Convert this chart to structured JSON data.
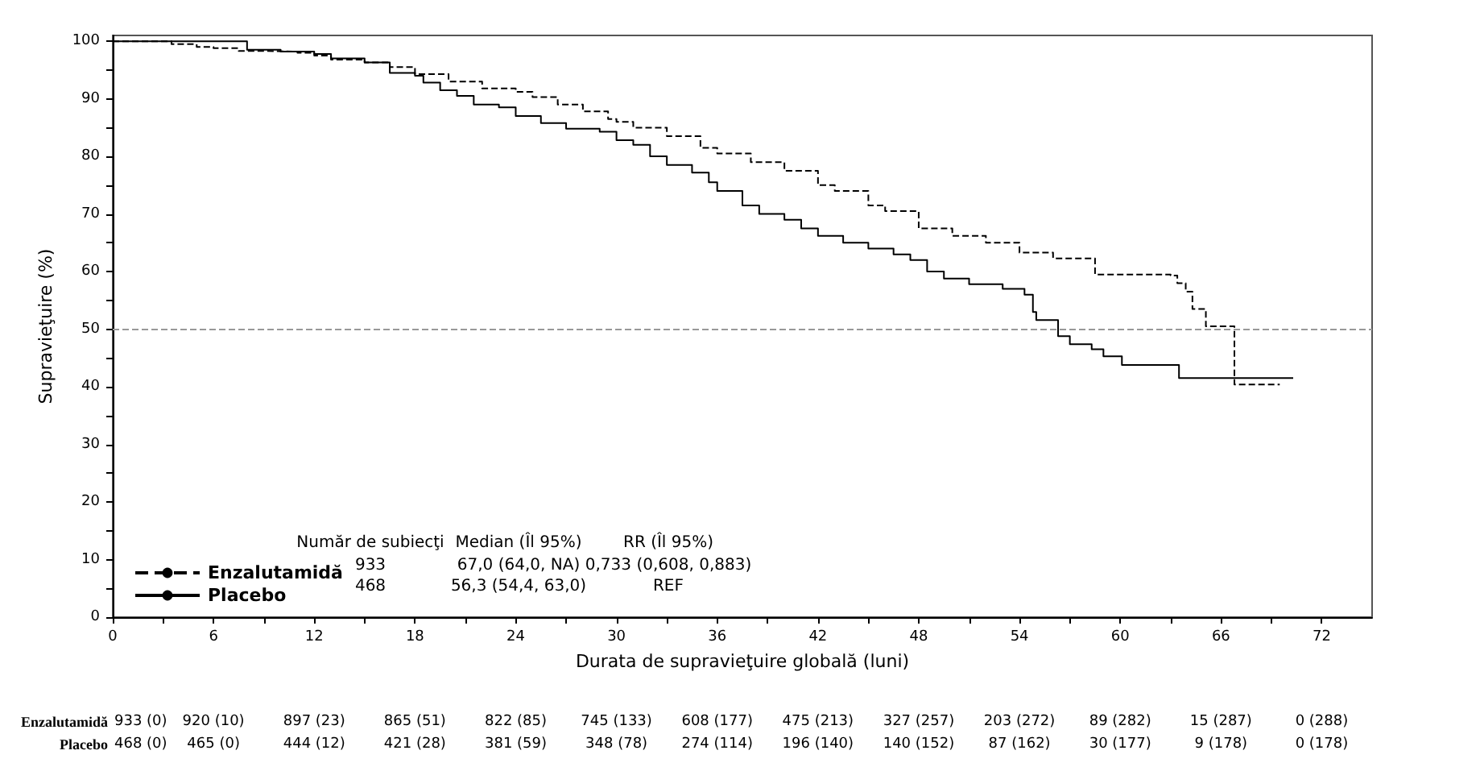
{
  "chart_data": {
    "type": "step",
    "xlabel": "Durata de supravieţuire globală (luni)",
    "ylabel": "Supravieţuire (%)",
    "xlim": [
      0,
      75
    ],
    "xticks": [
      0,
      6,
      12,
      18,
      24,
      30,
      36,
      42,
      48,
      54,
      60,
      66,
      72
    ],
    "ylim": [
      0,
      101
    ],
    "yticks": [
      0,
      10,
      20,
      30,
      40,
      50,
      60,
      70,
      80,
      90,
      100
    ],
    "grid": false,
    "legend": "bottom left",
    "ref_lines": [
      {
        "axis": "y",
        "value": 50,
        "line_style": "dashed",
        "color": "#999999"
      }
    ],
    "series": [
      {
        "name": "Enzalutamidă",
        "color": "#000000",
        "line_style": "dashed",
        "x": [
          0,
          3.5,
          5,
          6,
          7.5,
          9,
          11,
          12,
          13,
          15,
          16.5,
          18,
          20,
          22,
          24,
          25,
          26.5,
          28,
          29.5,
          30,
          31,
          33,
          35,
          36,
          38,
          40,
          42,
          43,
          45,
          46,
          48,
          50,
          52,
          54,
          56,
          58.5,
          58.5,
          63,
          63.4,
          63.9,
          64.3,
          65.1,
          66.8,
          69.5
        ],
        "values": [
          100,
          99.5,
          99,
          98.8,
          98.3,
          98.2,
          98,
          97.5,
          96.8,
          96.3,
          95.5,
          94.3,
          93,
          91.8,
          91.2,
          90.3,
          89,
          87.8,
          86.5,
          86,
          85,
          83.5,
          81.5,
          80.5,
          79,
          77.5,
          75,
          74,
          71.5,
          70.5,
          67.5,
          66.2,
          65,
          63.3,
          62.3,
          61,
          59.5,
          59.3,
          58,
          56.5,
          53.5,
          50.5,
          40.4,
          40.4
        ]
      },
      {
        "name": "Placebo",
        "color": "#000000",
        "line_style": "solid",
        "x": [
          0,
          7.5,
          8,
          10,
          12,
          13,
          15,
          16.5,
          18,
          18.5,
          19.5,
          20.5,
          21.5,
          23,
          24,
          25.5,
          27,
          29,
          30,
          31,
          32,
          33,
          34.5,
          35.5,
          36,
          37.5,
          38.5,
          40,
          41,
          42,
          43.5,
          45,
          46.5,
          47.5,
          48.5,
          49.5,
          51,
          53,
          54.3,
          54.8,
          55,
          56.3,
          57,
          58.3,
          59,
          60.1,
          63.5,
          70.3
        ],
        "values": [
          100,
          100,
          98.5,
          98.2,
          97.8,
          97,
          96.3,
          94.5,
          94,
          92.8,
          91.5,
          90.5,
          89,
          88.5,
          87,
          85.8,
          84.8,
          84.3,
          82.8,
          82,
          80,
          78.5,
          77.2,
          75.5,
          74,
          71.5,
          70,
          69,
          67.5,
          66.2,
          65,
          64,
          63,
          62,
          60,
          58.8,
          57.8,
          57,
          56,
          53,
          51.6,
          48.8,
          47.4,
          46.5,
          45.3,
          43.8,
          41.5,
          41.5
        ]
      }
    ],
    "annotations": [
      "Număr de subiecţi",
      "Median (Îl 95%)",
      "RR (Îl 95%)",
      "933",
      "67,0 (64,0, NA)",
      "0,733 (0,608, 0,883)",
      "468",
      "56,3 (54,4, 63,0)",
      "REF",
      "Enzalutamidă",
      "933 (0)",
      "920 (10)",
      "897 (23)",
      "865 (51)",
      "822 (85)",
      "745 (133)",
      "608 (177)",
      "475 (213)",
      "327 (257)",
      "203 (272)",
      "89 (282)",
      "15 (287)",
      "0 (288)",
      "Placebo",
      "468 (0)",
      "465 (0)",
      "444 (12)",
      "421 (28)",
      "381 (59)",
      "348 (78)",
      "274 (114)",
      "196 (140)",
      "140 (152)",
      "87 (162)",
      "30 (177)",
      "9 (178)",
      "0 (178)"
    ]
  }
}
